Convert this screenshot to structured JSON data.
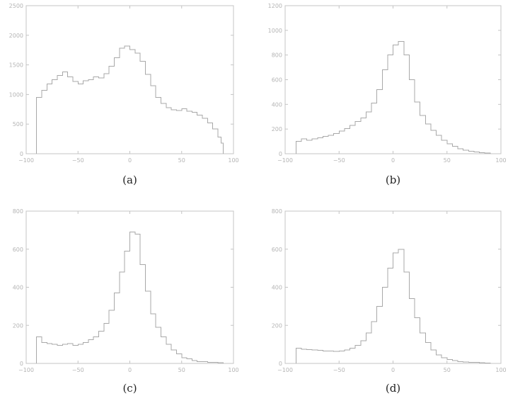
{
  "chart_data": [
    {
      "type": "histogram",
      "caption": "(a)",
      "xlim": [
        -100,
        100
      ],
      "ylim": [
        0,
        2500
      ],
      "xticks": [
        -100,
        -50,
        0,
        50,
        100
      ],
      "yticks": [
        0,
        500,
        1000,
        1500,
        2000,
        2500
      ],
      "x": [
        -90,
        -85,
        -80,
        -75,
        -70,
        -65,
        -60,
        -55,
        -50,
        -45,
        -40,
        -35,
        -30,
        -25,
        -20,
        -15,
        -10,
        -5,
        0,
        5,
        10,
        15,
        20,
        25,
        30,
        35,
        40,
        45,
        50,
        55,
        60,
        65,
        70,
        75,
        80,
        85,
        88,
        90
      ],
      "values": [
        950,
        1070,
        1180,
        1250,
        1320,
        1380,
        1300,
        1220,
        1180,
        1230,
        1250,
        1300,
        1280,
        1350,
        1480,
        1620,
        1780,
        1820,
        1760,
        1700,
        1560,
        1340,
        1150,
        950,
        850,
        780,
        740,
        730,
        760,
        720,
        700,
        650,
        600,
        520,
        420,
        280,
        180,
        0
      ]
    },
    {
      "type": "histogram",
      "caption": "(b)",
      "xlim": [
        -100,
        100
      ],
      "ylim": [
        0,
        1200
      ],
      "xticks": [
        -100,
        -50,
        0,
        50,
        100
      ],
      "yticks": [
        0,
        200,
        400,
        600,
        800,
        1000,
        1200
      ],
      "x": [
        -90,
        -85,
        -80,
        -75,
        -70,
        -65,
        -60,
        -55,
        -50,
        -45,
        -40,
        -35,
        -30,
        -25,
        -20,
        -15,
        -10,
        -5,
        0,
        5,
        10,
        15,
        20,
        25,
        30,
        35,
        40,
        45,
        50,
        55,
        60,
        65,
        70,
        75,
        80,
        85,
        90
      ],
      "values": [
        100,
        120,
        110,
        120,
        130,
        140,
        150,
        165,
        185,
        205,
        230,
        260,
        290,
        340,
        410,
        520,
        680,
        800,
        880,
        910,
        800,
        600,
        420,
        310,
        240,
        190,
        150,
        110,
        80,
        60,
        40,
        30,
        20,
        15,
        10,
        5,
        0
      ]
    },
    {
      "type": "histogram",
      "caption": "(c)",
      "xlim": [
        -100,
        100
      ],
      "ylim": [
        0,
        800
      ],
      "xticks": [
        -100,
        -50,
        0,
        50,
        100
      ],
      "yticks": [
        0,
        200,
        400,
        600,
        800
      ],
      "x": [
        -90,
        -85,
        -80,
        -75,
        -70,
        -65,
        -60,
        -55,
        -50,
        -45,
        -40,
        -35,
        -30,
        -25,
        -20,
        -15,
        -10,
        -5,
        0,
        5,
        10,
        15,
        20,
        25,
        30,
        35,
        40,
        45,
        50,
        55,
        60,
        65,
        70,
        75,
        80,
        85,
        90
      ],
      "values": [
        140,
        110,
        105,
        100,
        95,
        100,
        105,
        95,
        100,
        110,
        125,
        140,
        170,
        210,
        280,
        370,
        480,
        590,
        690,
        680,
        520,
        380,
        260,
        190,
        140,
        100,
        70,
        50,
        30,
        25,
        15,
        10,
        10,
        5,
        5,
        3,
        0
      ]
    },
    {
      "type": "histogram",
      "caption": "(d)",
      "xlim": [
        -100,
        100
      ],
      "ylim": [
        0,
        800
      ],
      "xticks": [
        -100,
        -50,
        0,
        50,
        100
      ],
      "yticks": [
        0,
        200,
        400,
        600,
        800
      ],
      "x": [
        -90,
        -85,
        -80,
        -75,
        -70,
        -65,
        -60,
        -55,
        -50,
        -45,
        -40,
        -35,
        -30,
        -25,
        -20,
        -15,
        -10,
        -5,
        0,
        5,
        10,
        15,
        20,
        25,
        30,
        35,
        40,
        45,
        50,
        55,
        60,
        65,
        70,
        75,
        80,
        85,
        90
      ],
      "values": [
        80,
        75,
        72,
        70,
        68,
        65,
        65,
        63,
        65,
        70,
        80,
        95,
        120,
        160,
        220,
        300,
        400,
        500,
        580,
        600,
        480,
        340,
        240,
        160,
        110,
        70,
        45,
        30,
        20,
        15,
        10,
        8,
        5,
        5,
        3,
        2,
        0
      ]
    }
  ]
}
